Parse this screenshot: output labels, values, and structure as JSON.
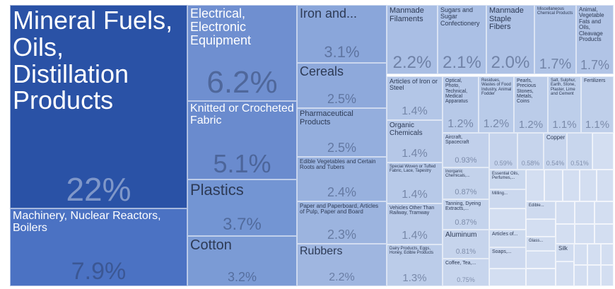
{
  "chart_data": {
    "type": "treemap",
    "labels": [
      "Mineral Fuels, Oils, Distillation Products",
      "Machinery, Nuclear Reactors, Boilers",
      "Electrical, Electronic Equipment",
      "Knitted or Crocheted Fabric",
      "Plastics",
      "Cotton",
      "Iron and...",
      "Cereals",
      "Pharmaceutical Products",
      "Edible Vegetables and Certain Roots and Tubers",
      "Paper and Paperboard, Articles of Pulp, Paper and Board",
      "Rubbers",
      "Manmade Filaments",
      "Sugars and Sugar Confectionery",
      "Manmade Staple Fibers",
      "Miscellaneous Chemical Products",
      "Animal, Vegetable Fats and Oils, Cleavage Products",
      "Articles of Iron or Steel",
      "Optical, Photo, Technical, Medical Apparatus",
      "Residues, Wastes of Food Industry, Animal Fodder",
      "Pearls, Precious Stones, Metals, Coins",
      "Salt, Sulphur, Earth, Stone, Plaster, Lime and Cement",
      "Fertilizers",
      "Organic Chemicals",
      "Special Woven or Tufted Fabric, Lace, Tapestry",
      "Vehicles Other Than Railway, Tramway",
      "Dairy Products, Eggs, Honey, Edible Products",
      "Aircraft, Spacecraft",
      null,
      null,
      "Copper",
      null,
      "Inorganic Chemicals,...",
      "Tanning, Dyeing Extracts,...",
      "Aluminum",
      "Coffee, Tea,...",
      "Essential Oils, Perfumes,...",
      "Milling...",
      "Articles of...",
      "Soaps,...",
      "Edible...",
      "Glass...",
      "Silk"
    ],
    "values": [
      22,
      7.9,
      6.2,
      5.1,
      3.7,
      3.2,
      3.1,
      2.5,
      2.5,
      2.4,
      2.3,
      2.2,
      2.2,
      2.1,
      2.0,
      1.7,
      1.7,
      1.4,
      1.2,
      1.2,
      1.2,
      1.1,
      1.1,
      1.4,
      1.4,
      1.4,
      1.3,
      0.93,
      0.59,
      0.58,
      0.54,
      0.51,
      0.87,
      0.87,
      0.81,
      0.75,
      null,
      null,
      null,
      null,
      null,
      null,
      null
    ],
    "value_labels": [
      "22%",
      "7.9%",
      "6.2%",
      "5.1%",
      "3.7%",
      "3.2%",
      "3.1%",
      "2.5%",
      "2.5%",
      "2.4%",
      "2.3%",
      "2.2%",
      "2.2%",
      "2.1%",
      "2.0%",
      "1.7%",
      "1.7%",
      "1.4%",
      "1.2%",
      "1.2%",
      "1.2%",
      "1.1%",
      "1.1%",
      "1.4%",
      "1.4%",
      "1.4%",
      "1.3%",
      "0.93%",
      "0.59%",
      "0.58%",
      "0.54%",
      "0.51%",
      "0.87%",
      "0.87%",
      "0.81%",
      "0.75%",
      null,
      null,
      null,
      null,
      null,
      null,
      null
    ],
    "colors": [
      "#2a52a6",
      "#4b72c3",
      "#6f8fd0",
      "#6a8bce",
      "#7395d3",
      "#7b9bd5",
      "#8aa6da",
      "#8ea9db",
      "#94aedd",
      "#98b1de",
      "#9cb4df",
      "#9fb6e0",
      "#a9bee4",
      "#abc0e5",
      "#adc1e5",
      "#afc3e6",
      "#b1c4e6",
      "#b3c6e7",
      "#b7c9e8",
      "#b9cbe9",
      "#bbcce9",
      "#bdceea",
      "#bfcfea",
      "#b5c7e7",
      "#b7c9e8",
      "#b9cae8",
      "#bbcce9",
      "#c1d0eb",
      "#c5d3ec",
      "#c6d4ec",
      "#c7d5ed",
      "#c8d6ed",
      "#c3d2eb",
      "#c4d3ec",
      "#c6d4ec",
      "#c7d5ed",
      "#cad8ee",
      "#cbd8ee",
      "#ccd9ee",
      "#cdd9ef",
      "#cedaef",
      "#cfdbef",
      "#d0dcf0"
    ]
  }
}
